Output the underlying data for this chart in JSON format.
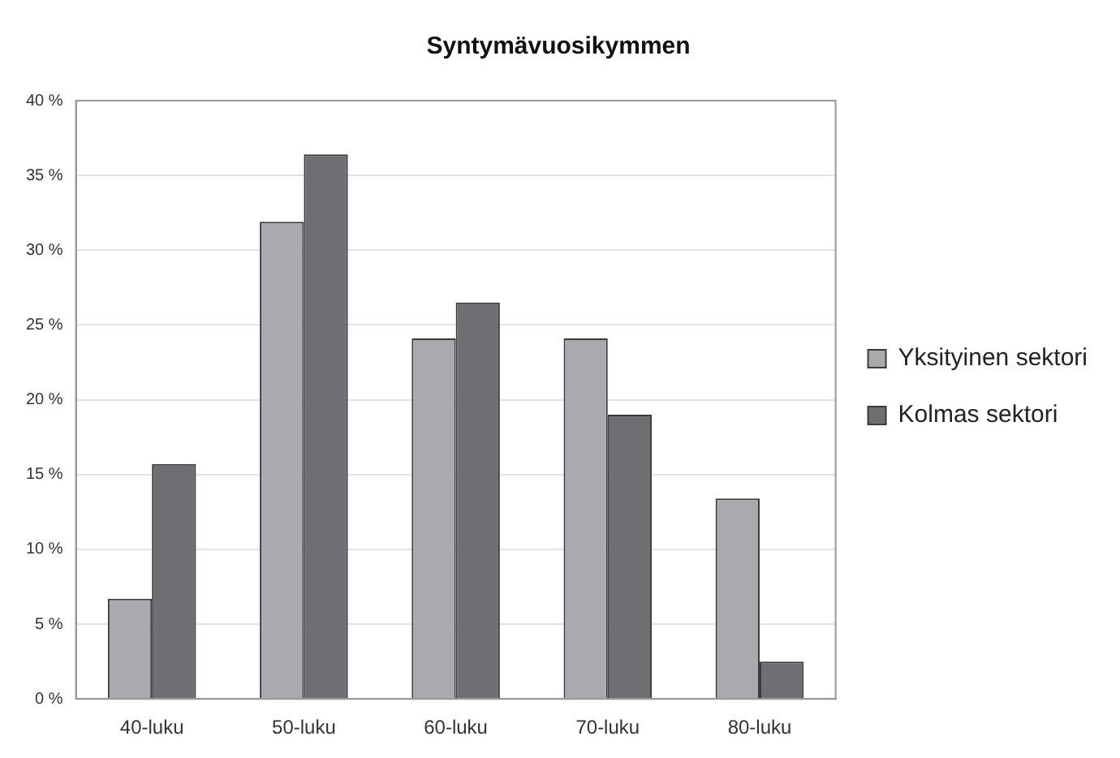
{
  "chart_data": {
    "type": "bar",
    "title": "Syntymävuosikymmen",
    "categories": [
      "40-luku",
      "50-luku",
      "60-luku",
      "70-luku",
      "80-luku"
    ],
    "series": [
      {
        "name": "Yksityinen sektori",
        "color": "#a9aaae",
        "values": [
          6.7,
          31.9,
          24.1,
          24.1,
          13.4
        ]
      },
      {
        "name": "Kolmas sektori",
        "color": "#6e6f73",
        "values": [
          15.7,
          36.4,
          26.5,
          19.0,
          2.5
        ]
      }
    ],
    "ylim": [
      0,
      40
    ],
    "yticks": [
      {
        "value": 0,
        "label": "0 %"
      },
      {
        "value": 5,
        "label": "5 %"
      },
      {
        "value": 10,
        "label": "10 %"
      },
      {
        "value": 15,
        "label": "15 %"
      },
      {
        "value": 20,
        "label": "20 %"
      },
      {
        "value": 25,
        "label": "25 %"
      },
      {
        "value": 30,
        "label": "30 %"
      },
      {
        "value": 35,
        "label": "35 %"
      },
      {
        "value": 40,
        "label": "40 %"
      }
    ],
    "grid": "y",
    "legend": "right"
  }
}
